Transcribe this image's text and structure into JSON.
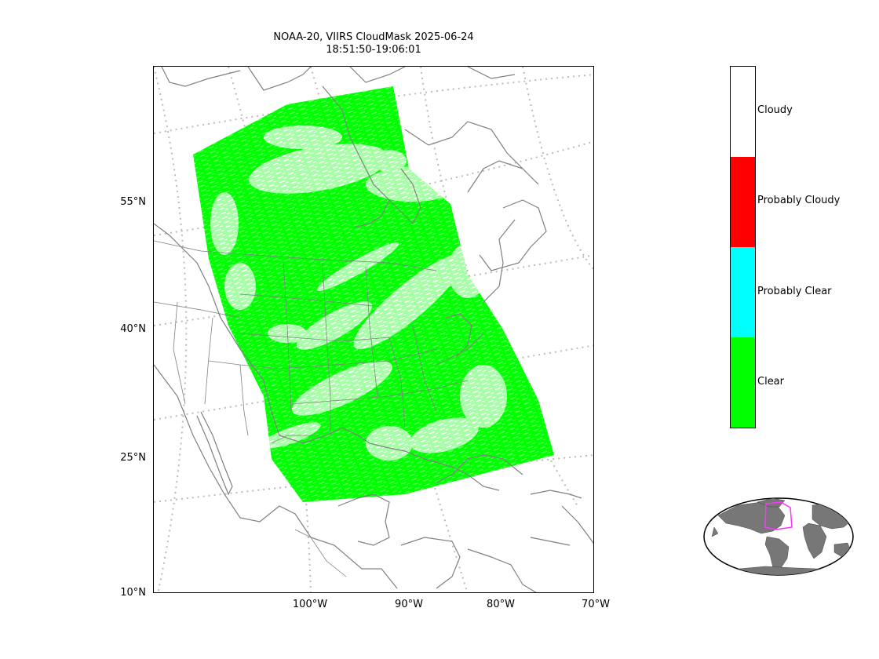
{
  "title": {
    "line1": "NOAA-20, VIIRS CloudMask 2025-06-24",
    "line2": "18:51:50-19:06:01"
  },
  "axes": {
    "lat_labels": [
      "55°N",
      "40°N",
      "25°N",
      "10°N"
    ],
    "lon_labels": [
      "100°W",
      "90°W",
      "80°W",
      "70°W"
    ]
  },
  "colorbar": {
    "classes": [
      {
        "label": "Cloudy",
        "color": "#ffffff"
      },
      {
        "label": "Probably Cloudy",
        "color": "#ff0000"
      },
      {
        "label": "Probably Clear",
        "color": "#00ffff"
      },
      {
        "label": "Clear",
        "color": "#00ff00"
      }
    ]
  },
  "colors": {
    "clear": "#00ff00",
    "cloudy": "#ffffff",
    "coastline": "#808080",
    "graticule": "#bbbbbb",
    "inset_land": "#777777",
    "inset_box": "#ff33ff"
  }
}
